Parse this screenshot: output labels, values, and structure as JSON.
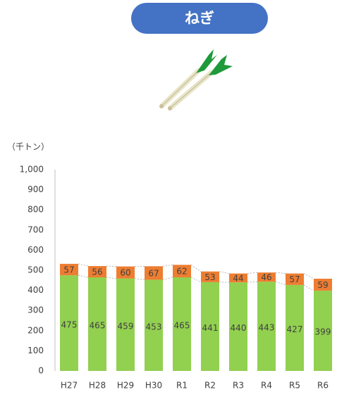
{
  "chart_data": {
    "type": "stacked-bar",
    "title": "ねぎ",
    "unit_label": "（千トン）",
    "categories": [
      "H27",
      "H28",
      "H29",
      "H30",
      "R1",
      "R2",
      "R3",
      "R4",
      "R5",
      "R6"
    ],
    "series": [
      {
        "color": "#92d050",
        "values": [
          475,
          465,
          459,
          453,
          465,
          441,
          440,
          443,
          427,
          399
        ]
      },
      {
        "color": "#ed7d31",
        "values": [
          57,
          56,
          60,
          67,
          62,
          53,
          44,
          46,
          57,
          59
        ]
      }
    ],
    "ylim": [
      0,
      1000
    ],
    "yticks": [
      0,
      100,
      200,
      300,
      400,
      500,
      600,
      700,
      800,
      900,
      {
        "value": 1000,
        "label": "1,000"
      }
    ],
    "grid": false
  }
}
